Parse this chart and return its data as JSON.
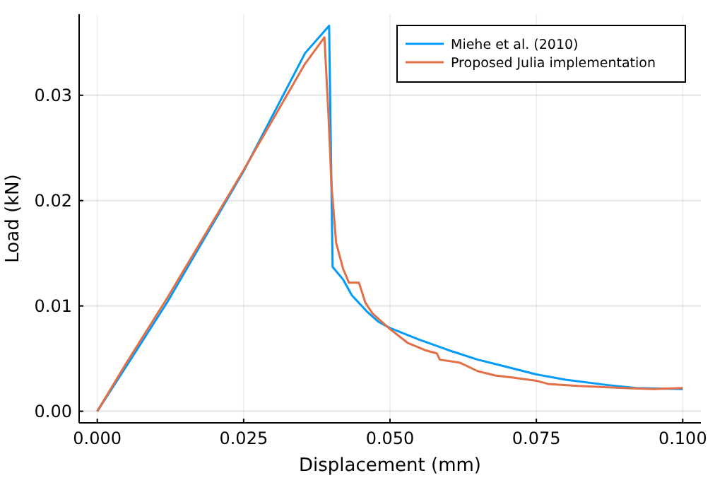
{
  "chart_data": {
    "type": "line",
    "xlabel": "Displacement (mm)",
    "ylabel": "Load (kN)",
    "xlim": [
      -0.0031,
      0.1031
    ],
    "ylim": [
      -0.0011,
      0.0377
    ],
    "xticks": [
      {
        "value": 0,
        "label": "0.000"
      },
      {
        "value": 0.025,
        "label": "0.025"
      },
      {
        "value": 0.05,
        "label": "0.050"
      },
      {
        "value": 0.075,
        "label": "0.075"
      },
      {
        "value": 0.1,
        "label": "0.100"
      }
    ],
    "yticks": [
      {
        "value": 0,
        "label": "0.00"
      },
      {
        "value": 0.01,
        "label": "0.01"
      },
      {
        "value": 0.02,
        "label": "0.02"
      },
      {
        "value": 0.03,
        "label": "0.03"
      }
    ],
    "grid": true,
    "legend": "top right",
    "line_style": "solid",
    "series": [
      {
        "name": "Miehe et al. (2010)",
        "color": "#009af9",
        "x": [
          0,
          0.005,
          0.012,
          0.025,
          0.0355,
          0.0396,
          0.0402,
          0.042,
          0.0435,
          0.046,
          0.048,
          0.05,
          0.055,
          0.06,
          0.065,
          0.07,
          0.075,
          0.08,
          0.087,
          0.092,
          0.1
        ],
        "values": [
          0,
          0.0043,
          0.0104,
          0.0228,
          0.034,
          0.0366,
          0.0137,
          0.0125,
          0.011,
          0.0095,
          0.0085,
          0.0079,
          0.0068,
          0.0058,
          0.0049,
          0.0042,
          0.0035,
          0.003,
          0.0025,
          0.0022,
          0.0021
        ]
      },
      {
        "name": "Proposed Julia implementation",
        "color": "#e26f46",
        "x": [
          0,
          0.005,
          0.012,
          0.025,
          0.0355,
          0.0388,
          0.0395,
          0.04,
          0.0408,
          0.042,
          0.043,
          0.0447,
          0.0458,
          0.047,
          0.048,
          0.05,
          0.053,
          0.056,
          0.058,
          0.0585,
          0.062,
          0.065,
          0.068,
          0.071,
          0.075,
          0.077,
          0.082,
          0.09,
          0.095,
          0.1
        ],
        "values": [
          0,
          0.0046,
          0.0108,
          0.0229,
          0.033,
          0.0355,
          0.028,
          0.0215,
          0.016,
          0.0135,
          0.0122,
          0.0122,
          0.0103,
          0.0093,
          0.0088,
          0.0078,
          0.0065,
          0.0058,
          0.0055,
          0.0049,
          0.0046,
          0.0038,
          0.0034,
          0.0032,
          0.0029,
          0.0026,
          0.0024,
          0.0022,
          0.0021,
          0.0022
        ]
      }
    ]
  }
}
